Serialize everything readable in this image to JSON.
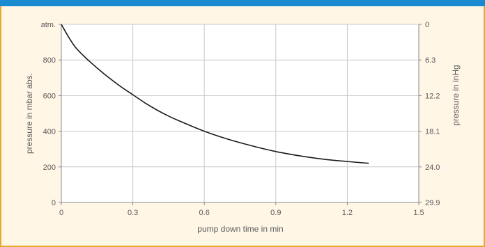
{
  "chart_data": {
    "type": "line",
    "xlabel": "pump down time in min",
    "ylabel": "pressure in mbar abs.",
    "y2label": "pressure in inHg",
    "xlim": [
      0,
      1.5
    ],
    "ylim": [
      0,
      1000
    ],
    "x_ticks": [
      0,
      0.3,
      0.6,
      0.9,
      1.2,
      1.5
    ],
    "x_tick_labels": [
      "0",
      "0.3",
      "0.6",
      "0.9",
      "1.2",
      "1.5"
    ],
    "y_ticks": [
      0,
      200,
      400,
      600,
      800,
      1000
    ],
    "y_tick_labels": [
      "0",
      "200",
      "400",
      "600",
      "800",
      "atm."
    ],
    "y2_tick_labels": [
      "29.9",
      "24.0",
      "18.1",
      "12.2",
      "6.3",
      "0"
    ],
    "grid": true,
    "series": [
      {
        "x": [
          0,
          0.03,
          0.06,
          0.1,
          0.15,
          0.2,
          0.25,
          0.3,
          0.35,
          0.4,
          0.45,
          0.5,
          0.6,
          0.7,
          0.8,
          0.9,
          1.0,
          1.1,
          1.2,
          1.29
        ],
        "values": [
          1000,
          930,
          870,
          815,
          755,
          700,
          650,
          605,
          560,
          520,
          485,
          455,
          400,
          355,
          318,
          286,
          262,
          243,
          230,
          220
        ]
      }
    ],
    "colors": {
      "line": "#1a1a1a",
      "grid": "#c9c9c9",
      "axis": "#8a8a8a"
    }
  }
}
